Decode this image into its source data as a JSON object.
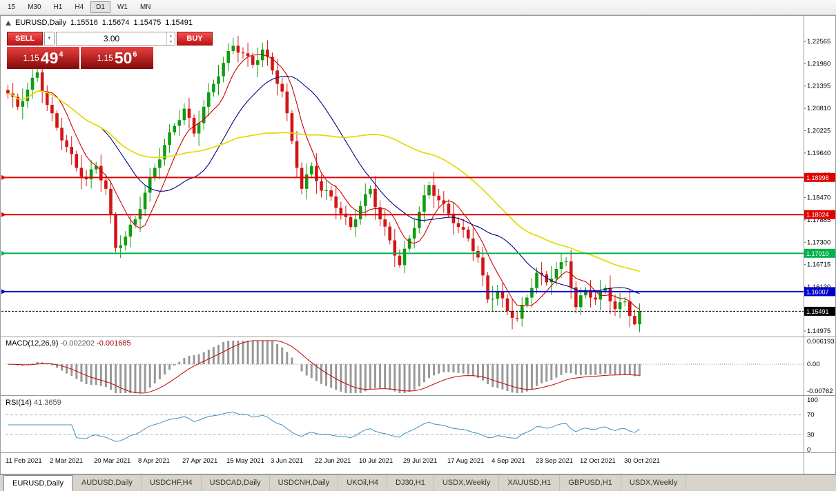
{
  "toolbar": {
    "timeframes": [
      "15",
      "M30",
      "H1",
      "H4",
      "D1",
      "W1",
      "MN"
    ],
    "active": "D1"
  },
  "chart_header": {
    "symbol": "EURUSD,Daily",
    "open": "1.15516",
    "high": "1.15674",
    "low": "1.15475",
    "close": "1.15491"
  },
  "one_click": {
    "sell_label": "SELL",
    "buy_label": "BUY",
    "volume": "3.00",
    "sell_price": {
      "small": "1.15",
      "big": "49",
      "sup": "4"
    },
    "buy_price": {
      "small": "1.15",
      "big": "50",
      "sup": "6"
    }
  },
  "icons": {
    "dropdown": "▼",
    "spin_up": "▲",
    "spin_down": "▼"
  },
  "bottom_tabs": [
    {
      "label": "EURUSD,Daily",
      "active": true
    },
    {
      "label": "AUDUSD,Daily",
      "active": false
    },
    {
      "label": "USDCHF,H4",
      "active": false
    },
    {
      "label": "USDCAD,Daily",
      "active": false
    },
    {
      "label": "USDCNH,Daily",
      "active": false
    },
    {
      "label": "UKOil,H4",
      "active": false
    },
    {
      "label": "DJ30,H1",
      "active": false
    },
    {
      "label": "USDX,Weekly",
      "active": false
    },
    {
      "label": "XAUUSD,H1",
      "active": false
    },
    {
      "label": "GBPUSD,H1",
      "active": false
    },
    {
      "label": "USDX,Weekly",
      "active": false
    }
  ],
  "chart_data": {
    "type": "candlestick",
    "title": "EURUSD,Daily",
    "price_axis": {
      "pmax": 1.2325,
      "pmin": 1.1483,
      "ticks": [
        "1.22565",
        "1.21980",
        "1.21395",
        "1.20810",
        "1.20225",
        "1.19640",
        "1.19055",
        "1.18470",
        "1.17885",
        "1.17300",
        "1.16715",
        "1.16130",
        "1.15545",
        "1.14975"
      ]
    },
    "date_labels": [
      "11 Feb 2021",
      "2 Mar 2021",
      "20 Mar 2021",
      "8 Apr 2021",
      "27 Apr 2021",
      "15 May 2021",
      "3 Jun 2021",
      "22 Jun 2021",
      "10 Jul 2021",
      "29 Jul 2021",
      "17 Aug 2021",
      "4 Sep 2021",
      "23 Sep 2021",
      "12 Oct 2021",
      "30 Oct 2021"
    ],
    "levels": [
      {
        "label": "1.18998",
        "price": 1.18998,
        "color": "#e10000",
        "width": 2
      },
      {
        "label": "1.18024",
        "price": 1.18024,
        "color": "#e10000",
        "width": 2
      },
      {
        "label": "1.17010",
        "price": 1.1701,
        "color": "#00b24a",
        "width": 2
      },
      {
        "label": "1.16007",
        "price": 1.16007,
        "color": "#0000cc",
        "width": 2
      }
    ],
    "current_price": {
      "label": "1.15491",
      "price": 1.15491,
      "color": "#000000"
    },
    "candle_colors": {
      "up": "#119c11",
      "down": "#d31414"
    },
    "candles": {
      "first_open": 1.2129,
      "wick_pattern": [
        0.0014,
        0.0028,
        0.0009,
        0.0033,
        0.0018,
        0.0024,
        0.0011,
        0.003,
        0.0016,
        0.0021,
        0.0008,
        0.0026
      ],
      "spikes": {
        "6": {
          "h": 1.2243
        },
        "22": {
          "l": 1.1704
        },
        "46": {
          "h": 1.2266
        },
        "80": {
          "l": 1.1664
        },
        "104": {
          "l": 1.1522
        },
        "128": {
          "l": 1.1513
        }
      },
      "closes": [
        1.212,
        1.2111,
        1.2085,
        1.21,
        1.213,
        1.2161,
        1.2175,
        1.2125,
        1.209,
        1.2068,
        1.203,
        1.1997,
        1.198,
        1.1961,
        1.1925,
        1.1902,
        1.1895,
        1.1921,
        1.193,
        1.1892,
        1.187,
        1.1801,
        1.1715,
        1.1722,
        1.1745,
        1.1776,
        1.179,
        1.1817,
        1.186,
        1.1901,
        1.1925,
        1.1947,
        1.1985,
        1.2018,
        1.2035,
        1.205,
        1.208,
        1.2056,
        1.2015,
        1.2042,
        1.2085,
        1.2123,
        1.2145,
        1.2165,
        1.22,
        1.2231,
        1.2245,
        1.2227,
        1.2225,
        1.2218,
        1.2195,
        1.2207,
        1.2235,
        1.2216,
        1.218,
        1.2145,
        1.2125,
        1.2068,
        1.1995,
        1.1925,
        1.187,
        1.1908,
        1.193,
        1.189,
        1.1865,
        1.1866,
        1.185,
        1.182,
        1.1805,
        1.1796,
        1.177,
        1.179,
        1.1825,
        1.1856,
        1.187,
        1.1822,
        1.179,
        1.1771,
        1.1735,
        1.1695,
        1.167,
        1.1713,
        1.174,
        1.1767,
        1.181,
        1.1853,
        1.188,
        1.1852,
        1.184,
        1.1831,
        1.1805,
        1.178,
        1.177,
        1.1763,
        1.174,
        1.1707,
        1.169,
        1.1643,
        1.158,
        1.1582,
        1.16,
        1.1583,
        1.155,
        1.1532,
        1.153,
        1.1566,
        1.1585,
        1.161,
        1.165,
        1.1646,
        1.1625,
        1.1635,
        1.166,
        1.1678,
        1.168,
        1.1612,
        1.156,
        1.1591,
        1.1605,
        1.1585,
        1.158,
        1.1603,
        1.161,
        1.1575,
        1.1555,
        1.1573,
        1.1575,
        1.1537,
        1.1515,
        1.1549
      ]
    },
    "moving_averages": [
      {
        "name": "fast",
        "period": 7,
        "color": "#cc0000",
        "width": 1.1
      },
      {
        "name": "medium",
        "period": 20,
        "color": "#000080",
        "width": 1.1
      },
      {
        "name": "slow",
        "period": 48,
        "color": "#e6d800",
        "width": 1.7
      }
    ],
    "macd": {
      "label": "MACD(12,26,9)",
      "value_main": "-0.002202",
      "value_signal": "-0.001685",
      "fast": 12,
      "slow": 26,
      "signal": 9,
      "axis": [
        "0.006193",
        "0.00",
        "-0.00762"
      ],
      "vmax": 0.006193,
      "vmin": -0.00762,
      "bar_color": "#989898",
      "line_color": "#c40000"
    },
    "rsi": {
      "label": "RSI(14)",
      "value": "41.3659",
      "period": 14,
      "axis": [
        "100",
        "70",
        "30",
        "0"
      ],
      "guides": [
        70,
        30
      ],
      "color": "#3d8fc4"
    }
  }
}
